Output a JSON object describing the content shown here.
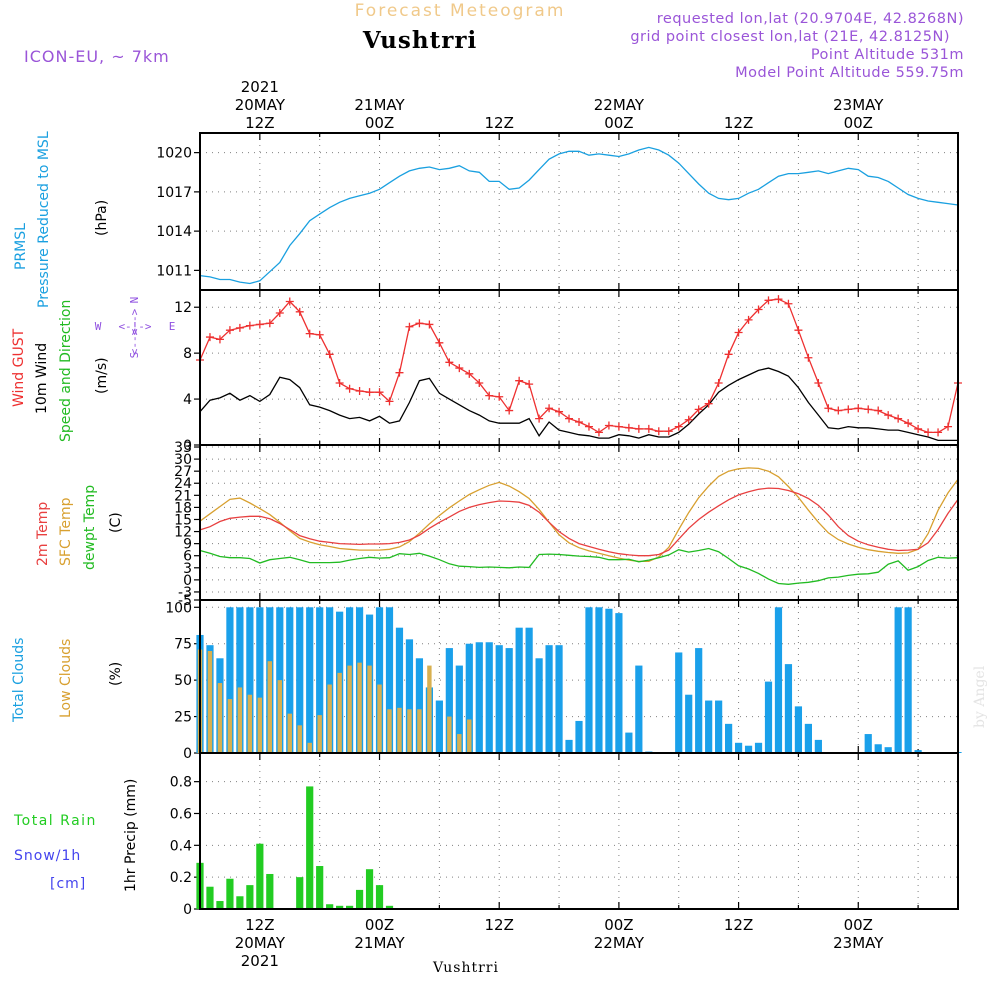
{
  "header": {
    "subtitle": "Forecast Meteogram",
    "location": "Vushtrri",
    "model": "ICON-EU, ~ 7km",
    "requested": "requested lon,lat (20.9704E, 42.8268N)",
    "gridpoint": "grid point closest lon,lat (21E, 42.8125N)",
    "point_alt": "Point Altitude 531m",
    "model_alt": "Model Point Altitude 559.75m",
    "footer": "Vushtrri",
    "credit": "by Angel"
  },
  "colors": {
    "pressure": "#1aa0e0",
    "gust": "#ee3030",
    "wind10": "#000000",
    "t2m": "#e84040",
    "tsfc": "#d8a030",
    "dewpt": "#22bb22",
    "total_clouds": "#1aa0ea",
    "low_clouds": "#d8b050",
    "rain": "#22cc22",
    "snow": "#4444ee",
    "compass": "#9050e0",
    "model": "#9a55d8"
  },
  "time_axis": {
    "top_labels": [
      {
        "t": 12,
        "lines": [
          "2021",
          "20MAY",
          "12Z"
        ]
      },
      {
        "t": 24,
        "lines": [
          "21MAY",
          "00Z"
        ]
      },
      {
        "t": 36,
        "lines": [
          "12Z"
        ]
      },
      {
        "t": 48,
        "lines": [
          "22MAY",
          "00Z"
        ]
      },
      {
        "t": 60,
        "lines": [
          "12Z"
        ]
      },
      {
        "t": 72,
        "lines": [
          "23MAY",
          "00Z"
        ]
      }
    ],
    "bottom_labels": [
      {
        "t": 12,
        "lines": [
          "12Z",
          "20MAY",
          "2021"
        ]
      },
      {
        "t": 24,
        "lines": [
          "00Z",
          "21MAY"
        ]
      },
      {
        "t": 36,
        "lines": [
          "12Z"
        ]
      },
      {
        "t": 48,
        "lines": [
          "00Z",
          "22MAY"
        ]
      },
      {
        "t": 60,
        "lines": [
          "12Z"
        ]
      },
      {
        "t": 72,
        "lines": [
          "00Z",
          "23MAY"
        ]
      }
    ]
  },
  "panels": {
    "pressure": {
      "labels": [
        "PRMSL",
        "Pressure Reduced to MSL"
      ],
      "unit": "(hPa)"
    },
    "wind": {
      "labels": [
        "Wind GUST",
        "10m Wind",
        "Speed and Direction"
      ],
      "unit": "(m/s)",
      "compass": {
        "n": "N",
        "s": "S",
        "w": "W",
        "e": "E",
        "row_top": "<-->",
        "row_mid": "<-!->",
        "row_bot": "<-->"
      }
    },
    "temp": {
      "labels": [
        "2m Temp",
        "SFC Temp",
        "dewpt Temp"
      ],
      "unit": "(C)"
    },
    "clouds": {
      "labels": [
        "Total Clouds",
        "Low Clouds"
      ],
      "unit": "(%)"
    },
    "precip": {
      "labels": [
        "Total Rain",
        "Snow/1h",
        "[cm]"
      ],
      "unit": "1hr Precip (mm)"
    }
  },
  "chart_data": [
    {
      "type": "line",
      "name": "PRMSL",
      "x_unit": "hours since 20MAY 00Z",
      "xlim": [
        6,
        82
      ],
      "ylim": [
        1009.5,
        1021.5
      ],
      "yticks": [
        1011,
        1014,
        1017,
        1020
      ],
      "x": [
        6,
        7,
        8,
        9,
        10,
        11,
        12,
        13,
        14,
        15,
        16,
        17,
        18,
        19,
        20,
        21,
        22,
        23,
        24,
        25,
        26,
        27,
        28,
        29,
        30,
        31,
        32,
        33,
        34,
        35,
        36,
        37,
        38,
        39,
        40,
        41,
        42,
        43,
        44,
        45,
        46,
        47,
        48,
        49,
        50,
        51,
        52,
        53,
        54,
        55,
        56,
        57,
        58,
        59,
        60,
        61,
        62,
        63,
        64,
        65,
        66,
        67,
        68,
        69,
        70,
        71,
        72,
        73,
        74,
        75,
        76,
        77,
        78,
        79,
        80,
        81,
        82
      ],
      "values": [
        1010.6,
        1010.5,
        1010.3,
        1010.3,
        1010.1,
        1010.0,
        1010.2,
        1010.9,
        1011.6,
        1012.9,
        1013.8,
        1014.8,
        1015.3,
        1015.8,
        1016.2,
        1016.5,
        1016.7,
        1016.9,
        1017.2,
        1017.7,
        1018.2,
        1018.6,
        1018.8,
        1018.9,
        1018.7,
        1018.8,
        1019.0,
        1018.6,
        1018.5,
        1017.8,
        1017.8,
        1017.2,
        1017.3,
        1017.9,
        1018.7,
        1019.5,
        1019.9,
        1020.1,
        1020.1,
        1019.8,
        1019.9,
        1019.8,
        1019.7,
        1019.9,
        1020.2,
        1020.4,
        1020.2,
        1019.8,
        1019.2,
        1018.4,
        1017.6,
        1016.9,
        1016.5,
        1016.4,
        1016.5,
        1016.9,
        1017.2,
        1017.7,
        1018.2,
        1018.4,
        1018.4,
        1018.5,
        1018.6,
        1018.4,
        1018.6,
        1018.8,
        1018.7,
        1018.2,
        1018.1,
        1017.8,
        1017.3,
        1016.8,
        1016.5,
        1016.3,
        1016.2,
        1016.1,
        1016.0
      ]
    },
    {
      "type": "line",
      "name": "Wind",
      "ylim": [
        0,
        13.5
      ],
      "yticks": [
        0,
        4,
        8,
        12
      ],
      "x": [
        6,
        7,
        8,
        9,
        10,
        11,
        12,
        13,
        14,
        15,
        16,
        17,
        18,
        19,
        20,
        21,
        22,
        23,
        24,
        25,
        26,
        27,
        28,
        29,
        30,
        31,
        32,
        33,
        34,
        35,
        36,
        37,
        38,
        39,
        40,
        41,
        42,
        43,
        44,
        45,
        46,
        47,
        48,
        49,
        50,
        51,
        52,
        53,
        54,
        55,
        56,
        57,
        58,
        59,
        60,
        61,
        62,
        63,
        64,
        65,
        66,
        67,
        68,
        69,
        70,
        71,
        72,
        73,
        74,
        75,
        76,
        77,
        78,
        79,
        80,
        81,
        82
      ],
      "series": [
        {
          "name": "Wind GUST",
          "values": [
            7.4,
            9.4,
            9.2,
            10.0,
            10.2,
            10.4,
            10.5,
            10.6,
            11.5,
            12.5,
            11.6,
            9.7,
            9.6,
            7.9,
            5.4,
            4.9,
            4.7,
            4.6,
            4.6,
            3.8,
            6.3,
            10.3,
            10.6,
            10.5,
            8.9,
            7.2,
            6.7,
            6.2,
            5.4,
            4.3,
            4.2,
            3.0,
            5.6,
            5.3,
            2.3,
            3.2,
            2.9,
            2.3,
            2.0,
            1.6,
            1.1,
            1.7,
            1.6,
            1.5,
            1.4,
            1.4,
            1.2,
            1.2,
            1.6,
            2.2,
            3.1,
            3.6,
            5.4,
            7.9,
            9.8,
            10.9,
            11.8,
            12.6,
            12.7,
            12.3,
            10.0,
            7.6,
            5.4,
            3.2,
            3.0,
            3.1,
            3.2,
            3.1,
            3.0,
            2.6,
            2.3,
            1.9,
            1.4,
            1.1,
            1.1,
            1.6,
            5.4
          ]
        },
        {
          "name": "10m Wind",
          "values": [
            2.9,
            3.9,
            4.1,
            4.5,
            3.9,
            4.3,
            3.8,
            4.4,
            5.9,
            5.7,
            5.0,
            3.5,
            3.3,
            3.0,
            2.6,
            2.3,
            2.4,
            2.1,
            2.5,
            1.9,
            2.1,
            3.7,
            5.6,
            5.8,
            4.5,
            4.0,
            3.5,
            3.0,
            2.6,
            2.1,
            1.9,
            1.9,
            1.9,
            2.3,
            0.8,
            2.0,
            1.3,
            1.1,
            0.9,
            0.8,
            0.6,
            0.6,
            0.9,
            0.8,
            0.6,
            0.9,
            0.7,
            0.7,
            1.1,
            1.8,
            2.7,
            3.5,
            4.6,
            5.2,
            5.7,
            6.1,
            6.5,
            6.7,
            6.4,
            6.0,
            5.0,
            3.7,
            2.6,
            1.5,
            1.4,
            1.6,
            1.5,
            1.5,
            1.4,
            1.3,
            1.3,
            1.1,
            0.9,
            0.7,
            0.4,
            0.4,
            0.4
          ]
        }
      ]
    },
    {
      "type": "line",
      "name": "Temperature",
      "ylim": [
        -5,
        33.5
      ],
      "yticks": [
        -5,
        -3,
        0,
        3,
        6,
        9,
        12,
        15,
        18,
        21,
        24,
        27,
        30,
        33
      ],
      "x": [
        6,
        7,
        8,
        9,
        10,
        11,
        12,
        13,
        14,
        15,
        16,
        17,
        18,
        19,
        20,
        21,
        22,
        23,
        24,
        25,
        26,
        27,
        28,
        29,
        30,
        31,
        32,
        33,
        34,
        35,
        36,
        37,
        38,
        39,
        40,
        41,
        42,
        43,
        44,
        45,
        46,
        47,
        48,
        49,
        50,
        51,
        52,
        53,
        54,
        55,
        56,
        57,
        58,
        59,
        60,
        61,
        62,
        63,
        64,
        65,
        66,
        67,
        68,
        69,
        70,
        71,
        72,
        73,
        74,
        75,
        76,
        77,
        78,
        79,
        80,
        81,
        82
      ],
      "series": [
        {
          "name": "2m Temp",
          "values": [
            12.4,
            13.2,
            14.5,
            15.3,
            15.6,
            15.8,
            15.8,
            15.2,
            14.0,
            12.5,
            11.0,
            10.2,
            9.6,
            9.3,
            9.0,
            8.9,
            8.8,
            8.9,
            8.9,
            9.0,
            9.3,
            9.9,
            11.1,
            12.8,
            14.3,
            15.6,
            17.0,
            18.0,
            18.7,
            19.2,
            19.6,
            19.5,
            19.3,
            18.5,
            16.8,
            14.3,
            12.0,
            10.3,
            9.0,
            8.3,
            7.6,
            7.0,
            6.5,
            6.2,
            6.0,
            6.0,
            6.3,
            7.4,
            10.1,
            12.8,
            15.0,
            16.8,
            18.4,
            19.9,
            21.1,
            21.9,
            22.5,
            22.8,
            22.7,
            22.2,
            21.4,
            20.2,
            18.5,
            16.1,
            13.2,
            11.0,
            9.6,
            8.7,
            8.1,
            7.6,
            7.3,
            7.4,
            7.6,
            9.2,
            12.5,
            16.5,
            20.0
          ]
        },
        {
          "name": "SFC Temp",
          "values": [
            14.6,
            16.4,
            18.2,
            20.0,
            20.3,
            19.1,
            17.7,
            16.2,
            14.3,
            12.2,
            10.3,
            9.4,
            8.7,
            8.3,
            7.8,
            7.6,
            7.4,
            7.4,
            7.4,
            7.6,
            8.2,
            9.5,
            11.6,
            13.9,
            16.0,
            17.9,
            19.6,
            21.2,
            22.4,
            23.5,
            24.2,
            23.3,
            21.9,
            20.2,
            17.5,
            14.3,
            11.2,
            9.2,
            8.0,
            7.2,
            6.6,
            6.0,
            5.4,
            4.9,
            4.6,
            4.6,
            5.7,
            8.1,
            12.5,
            16.7,
            20.4,
            23.3,
            25.7,
            27.0,
            27.6,
            27.8,
            27.7,
            27.0,
            25.6,
            23.2,
            20.5,
            17.3,
            14.3,
            11.7,
            10.0,
            8.9,
            8.1,
            7.5,
            7.1,
            6.8,
            6.6,
            6.7,
            7.6,
            11.5,
            17.3,
            21.6,
            25.0
          ]
        },
        {
          "name": "dewpt Temp",
          "values": [
            7.3,
            6.6,
            5.8,
            5.5,
            5.5,
            5.3,
            4.2,
            5.0,
            5.3,
            5.6,
            5.0,
            4.3,
            4.3,
            4.3,
            4.4,
            4.9,
            5.3,
            5.6,
            5.4,
            5.5,
            6.5,
            6.3,
            6.6,
            5.9,
            5.0,
            4.0,
            3.4,
            3.3,
            3.1,
            3.2,
            3.1,
            3.0,
            3.2,
            3.1,
            6.3,
            6.4,
            6.3,
            6.1,
            5.9,
            5.8,
            5.6,
            5.0,
            5.0,
            5.1,
            4.5,
            4.9,
            5.5,
            6.2,
            7.5,
            6.9,
            7.3,
            7.8,
            7.0,
            5.3,
            3.5,
            2.7,
            1.6,
            0.2,
            -0.9,
            -1.1,
            -0.8,
            -0.6,
            -0.2,
            0.5,
            0.7,
            1.1,
            1.4,
            1.5,
            1.9,
            3.9,
            4.7,
            2.4,
            3.3,
            4.8,
            5.6,
            5.4,
            5.5
          ]
        }
      ]
    },
    {
      "type": "bar",
      "name": "Clouds",
      "ylim": [
        0,
        105
      ],
      "yticks": [
        0,
        25,
        50,
        75,
        100
      ],
      "x": [
        6,
        7,
        8,
        9,
        10,
        11,
        12,
        13,
        14,
        15,
        16,
        17,
        18,
        19,
        20,
        21,
        22,
        23,
        24,
        25,
        26,
        27,
        28,
        29,
        30,
        31,
        32,
        33,
        34,
        35,
        36,
        37,
        38,
        39,
        40,
        41,
        42,
        43,
        44,
        45,
        46,
        47,
        48,
        49,
        50,
        51,
        52,
        53,
        54,
        55,
        56,
        57,
        58,
        59,
        60,
        61,
        62,
        63,
        64,
        65,
        66,
        67,
        68,
        69,
        70,
        71,
        72,
        73,
        74,
        75,
        76,
        77,
        78,
        79,
        80,
        81,
        82
      ],
      "series": [
        {
          "name": "Total Clouds",
          "values": [
            81,
            74,
            65,
            100,
            100,
            100,
            100,
            100,
            100,
            100,
            100,
            100,
            100,
            100,
            97,
            100,
            100,
            95,
            100,
            100,
            86,
            78,
            65,
            45,
            36,
            72,
            60,
            75,
            76,
            76,
            74,
            72,
            86,
            86,
            65,
            74,
            74,
            9,
            22,
            100,
            100,
            99,
            96,
            14,
            60,
            1,
            0,
            0,
            69,
            40,
            72,
            36,
            36,
            20,
            7,
            5,
            7,
            49,
            100,
            61,
            32,
            20,
            9,
            0,
            0,
            0,
            0,
            13,
            6,
            4,
            100,
            100,
            2,
            0,
            0,
            0,
            0
          ]
        },
        {
          "name": "Low Clouds",
          "values": [
            71,
            70,
            48,
            37,
            45,
            40,
            38,
            63,
            50,
            27,
            19,
            7,
            26,
            47,
            55,
            60,
            62,
            60,
            47,
            30,
            31,
            30,
            30,
            60,
            0,
            25,
            13,
            23,
            0,
            0,
            0,
            0,
            0,
            0,
            0,
            0,
            0,
            0,
            0,
            0,
            0,
            0,
            0,
            0,
            0,
            0,
            0,
            0,
            0,
            0,
            0,
            0,
            0,
            0,
            0,
            0,
            0,
            0,
            0,
            0,
            0,
            0,
            0,
            0,
            0,
            0,
            0,
            0,
            0,
            0,
            0,
            0,
            0,
            0,
            0,
            0,
            0
          ]
        }
      ]
    },
    {
      "type": "bar",
      "name": "1hr Precip",
      "ylim": [
        0,
        0.98
      ],
      "yticks": [
        0,
        0.2,
        0.4,
        0.6,
        0.8
      ],
      "ytick_labels": [
        "0",
        "0.2",
        "0.4",
        "0.6",
        "0.8"
      ],
      "x": [
        6,
        7,
        8,
        9,
        10,
        11,
        12,
        13,
        14,
        15,
        16,
        17,
        18,
        19,
        20,
        21,
        22,
        23,
        24,
        25,
        26,
        27
      ],
      "series": [
        {
          "name": "Total Rain",
          "values": [
            0.29,
            0.14,
            0.05,
            0.19,
            0.08,
            0.15,
            0.41,
            0.22,
            0,
            0,
            0.2,
            0.77,
            0.27,
            0.03,
            0.02,
            0.02,
            0.12,
            0.25,
            0.15,
            0.02,
            0,
            0
          ]
        },
        {
          "name": "Snow/1h",
          "values": [
            0,
            0,
            0,
            0,
            0,
            0,
            0,
            0,
            0,
            0,
            0,
            0,
            0,
            0,
            0,
            0,
            0,
            0,
            0,
            0,
            0,
            0
          ]
        }
      ]
    }
  ]
}
